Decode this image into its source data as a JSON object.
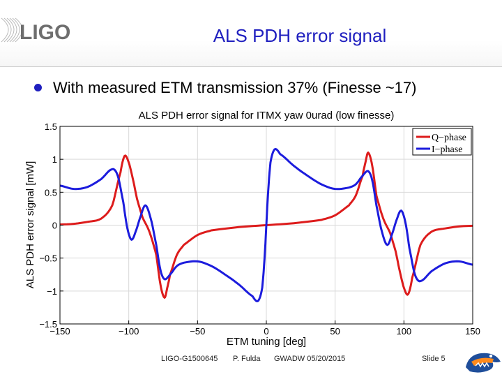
{
  "header": {
    "logo_text": "LIGO",
    "slide_title": "ALS PDH error signal"
  },
  "bullet": {
    "text": "With measured ETM transmission 37% (Finesse ~17)",
    "bullet_color": "#1f1fbf"
  },
  "colors": {
    "title": "#1f1fbf",
    "q_phase": "#dd1c1c",
    "i_phase": "#1c1cdd",
    "grid": "#d9d9d9"
  },
  "chart_data": {
    "type": "line",
    "title": "ALS PDH error signal for ITMX yaw 0urad (low finesse)",
    "xlabel": "ETM tuning [deg]",
    "ylabel": "ALS PDH error signal [mW]",
    "xlim": [
      -150,
      150
    ],
    "ylim": [
      -1.5,
      1.5
    ],
    "x_ticks": [
      -150,
      -100,
      -50,
      0,
      50,
      100,
      150
    ],
    "y_ticks": [
      1.5,
      1,
      0.5,
      0,
      -0.5,
      -1,
      -1.5
    ],
    "x_tick_labels": [
      "−150",
      "−100",
      "−50",
      "0",
      "50",
      "100",
      "150"
    ],
    "y_tick_labels": [
      "1.5",
      "1",
      "0.5",
      "0",
      "−0.5",
      "−1",
      "−1.5"
    ],
    "grid": true,
    "legend_position": "top-right",
    "series": [
      {
        "name": "Q−phase",
        "color": "#dd1c1c",
        "x": [
          -150,
          -140,
          -130,
          -120,
          -112,
          -106,
          -103,
          -100,
          -97,
          -94,
          -90,
          -85,
          -80,
          -77,
          -74,
          -72,
          -70,
          -65,
          -60,
          -50,
          -40,
          -20,
          0,
          20,
          40,
          50,
          60,
          65,
          70,
          72,
          74,
          77,
          80,
          85,
          90,
          94,
          97,
          100,
          103,
          106,
          112,
          120,
          130,
          140,
          150
        ],
        "y": [
          0.01,
          0.02,
          0.05,
          0.1,
          0.3,
          0.8,
          1.05,
          0.95,
          0.7,
          0.4,
          0.12,
          -0.1,
          -0.45,
          -0.9,
          -1.1,
          -0.95,
          -0.75,
          -0.45,
          -0.3,
          -0.15,
          -0.08,
          -0.03,
          0.0,
          0.03,
          0.08,
          0.15,
          0.3,
          0.45,
          0.75,
          0.95,
          1.1,
          0.9,
          0.45,
          0.1,
          -0.12,
          -0.4,
          -0.7,
          -0.95,
          -1.05,
          -0.8,
          -0.3,
          -0.1,
          -0.05,
          -0.02,
          -0.01
        ]
      },
      {
        "name": "I−phase",
        "color": "#1c1cdd",
        "x": [
          -150,
          -140,
          -130,
          -120,
          -112,
          -108,
          -104,
          -101,
          -98,
          -95,
          -92,
          -88,
          -84,
          -80,
          -77,
          -74,
          -70,
          -65,
          -60,
          -50,
          -40,
          -30,
          -20,
          -10,
          -6,
          -3,
          -1,
          1,
          3,
          6,
          10,
          20,
          30,
          40,
          50,
          60,
          65,
          70,
          74,
          77,
          80,
          84,
          88,
          92,
          95,
          98,
          101,
          104,
          108,
          112,
          120,
          130,
          140,
          150
        ],
        "y": [
          0.6,
          0.55,
          0.58,
          0.7,
          0.85,
          0.75,
          0.35,
          -0.05,
          -0.22,
          -0.1,
          0.1,
          0.3,
          0.1,
          -0.3,
          -0.68,
          -0.82,
          -0.75,
          -0.62,
          -0.57,
          -0.55,
          -0.62,
          -0.75,
          -0.9,
          -1.08,
          -1.15,
          -0.95,
          -0.4,
          0.4,
          0.95,
          1.15,
          1.08,
          0.9,
          0.75,
          0.62,
          0.55,
          0.57,
          0.62,
          0.75,
          0.82,
          0.68,
          0.3,
          -0.1,
          -0.3,
          -0.1,
          0.1,
          0.22,
          0.05,
          -0.35,
          -0.75,
          -0.85,
          -0.7,
          -0.58,
          -0.55,
          -0.6
        ]
      }
    ]
  },
  "footer": {
    "doc_id": "LIGO-G1500645",
    "author": "P. Fulda",
    "meeting": "GWADW 05/20/2015",
    "slide_number": "Slide 5"
  },
  "icons": {
    "left_logo": "ligo-logo",
    "right_logo": "uf-gator-logo"
  }
}
